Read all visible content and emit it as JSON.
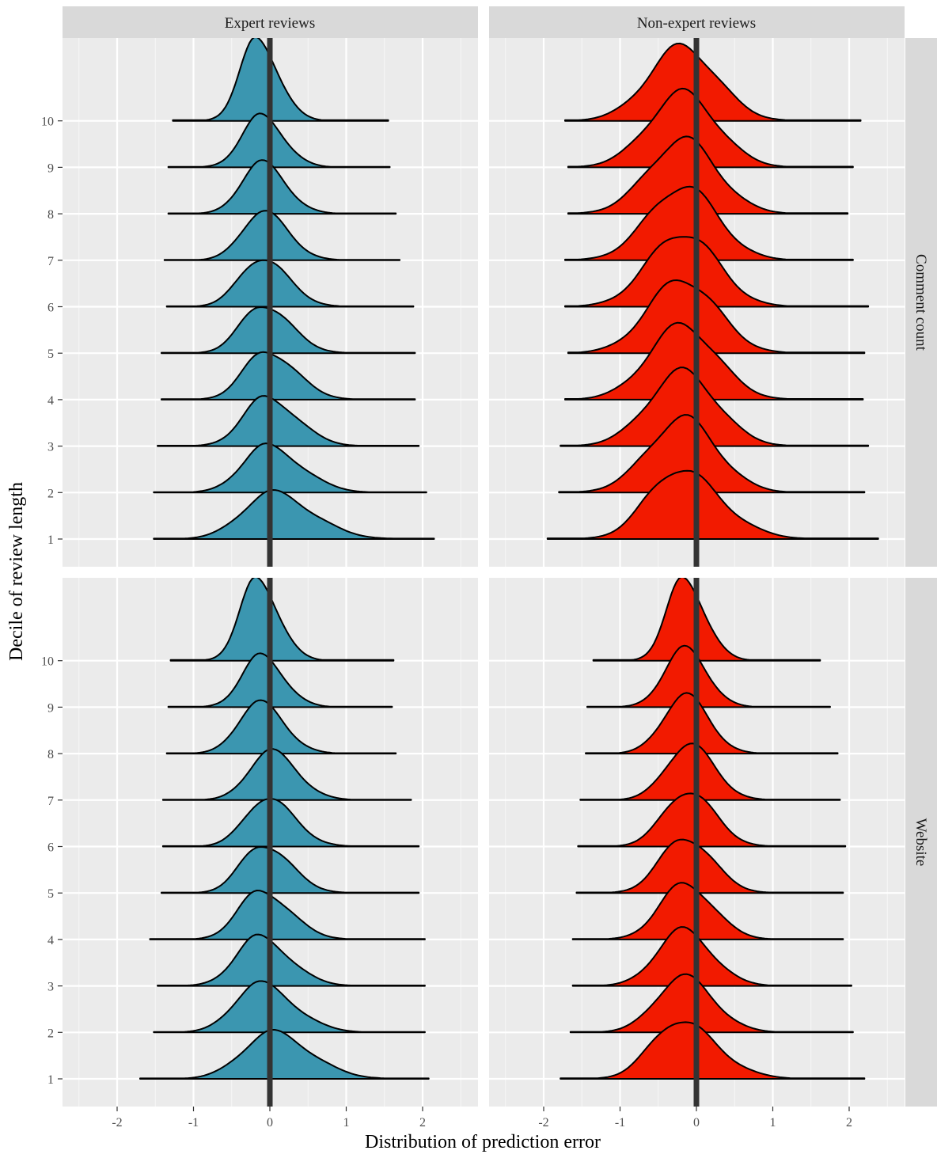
{
  "chart_data": {
    "type": "ridgeline",
    "xlabel": "Distribution of prediction error",
    "ylabel": "Decile of review length",
    "xlim": [
      -2.6,
      2.7
    ],
    "x_ticks": [
      "-2",
      "-1",
      "0",
      "1",
      "2"
    ],
    "x_tick_values": [
      -2,
      -1,
      0,
      1,
      2
    ],
    "y_ticks": [
      "1",
      "2",
      "3",
      "4",
      "5",
      "6",
      "7",
      "8",
      "9",
      "10"
    ],
    "reference_line_x": 0,
    "grid": true,
    "facet_columns": [
      {
        "label": "Expert reviews",
        "fill": "#3B96B0"
      },
      {
        "label": "Non-expert reviews",
        "fill": "#F21A00"
      }
    ],
    "facet_rows": [
      {
        "label": "Comment count"
      },
      {
        "label": "Website"
      }
    ],
    "panels": [
      {
        "column": "Expert reviews",
        "row": "Comment count",
        "ridges": [
          {
            "decile": 1,
            "x_min": -1.52,
            "x_max": 2.15,
            "peak": 0.02,
            "spread_left": 0.38,
            "spread_right": 0.52,
            "height": 1.0
          },
          {
            "decile": 2,
            "x_min": -1.52,
            "x_max": 2.05,
            "peak": -0.05,
            "spread_left": 0.32,
            "spread_right": 0.45,
            "height": 1.0
          },
          {
            "decile": 3,
            "x_min": -1.47,
            "x_max": 1.95,
            "peak": -0.05,
            "spread_left": 0.3,
            "spread_right": 0.4,
            "height": 1.05
          },
          {
            "decile": 4,
            "x_min": -1.42,
            "x_max": 1.9,
            "peak": -0.05,
            "spread_left": 0.29,
            "spread_right": 0.38,
            "height": 1.05
          },
          {
            "decile": 5,
            "x_min": -1.42,
            "x_max": 1.9,
            "peak": -0.1,
            "spread_left": 0.28,
            "spread_right": 0.36,
            "height": 1.05
          },
          {
            "decile": 6,
            "x_min": -1.35,
            "x_max": 1.88,
            "peak": -0.12,
            "spread_left": 0.28,
            "spread_right": 0.35,
            "height": 1.05
          },
          {
            "decile": 7,
            "x_min": -1.38,
            "x_max": 1.7,
            "peak": -0.1,
            "spread_left": 0.27,
            "spread_right": 0.33,
            "height": 1.05
          },
          {
            "decile": 8,
            "x_min": -1.33,
            "x_max": 1.65,
            "peak": -0.12,
            "spread_left": 0.26,
            "spread_right": 0.32,
            "height": 1.1
          },
          {
            "decile": 9,
            "x_min": -1.33,
            "x_max": 1.57,
            "peak": -0.12,
            "spread_left": 0.25,
            "spread_right": 0.3,
            "height": 1.1
          },
          {
            "decile": 10,
            "x_min": -1.27,
            "x_max": 1.55,
            "peak": -0.17,
            "spread_left": 0.22,
            "spread_right": 0.28,
            "height": 1.75
          }
        ]
      },
      {
        "column": "Non-expert reviews",
        "row": "Comment count",
        "ridges": [
          {
            "decile": 1,
            "x_min": -1.95,
            "x_max": 2.38,
            "peak": -0.25,
            "spread_left": 0.4,
            "spread_right": 0.55,
            "height": 1.5
          },
          {
            "decile": 2,
            "x_min": -1.8,
            "x_max": 2.2,
            "peak": -0.18,
            "spread_left": 0.45,
            "spread_right": 0.45,
            "height": 1.6
          },
          {
            "decile": 3,
            "x_min": -1.78,
            "x_max": 2.25,
            "peak": -0.18,
            "spread_left": 0.45,
            "spread_right": 0.45,
            "height": 1.6
          },
          {
            "decile": 4,
            "x_min": -1.72,
            "x_max": 2.18,
            "peak": -0.18,
            "spread_left": 0.45,
            "spread_right": 0.45,
            "height": 1.6
          },
          {
            "decile": 5,
            "x_min": -1.68,
            "x_max": 2.2,
            "peak": -0.18,
            "spread_left": 0.45,
            "spread_right": 0.45,
            "height": 1.6
          },
          {
            "decile": 6,
            "x_min": -1.72,
            "x_max": 2.25,
            "peak": -0.18,
            "spread_left": 0.45,
            "spread_right": 0.45,
            "height": 1.6
          },
          {
            "decile": 7,
            "x_min": -1.72,
            "x_max": 2.05,
            "peak": -0.18,
            "spread_left": 0.45,
            "spread_right": 0.45,
            "height": 1.6
          },
          {
            "decile": 8,
            "x_min": -1.68,
            "x_max": 1.98,
            "peak": -0.18,
            "spread_left": 0.45,
            "spread_right": 0.45,
            "height": 1.6
          },
          {
            "decile": 9,
            "x_min": -1.68,
            "x_max": 2.05,
            "peak": -0.18,
            "spread_left": 0.45,
            "spread_right": 0.45,
            "height": 1.6
          },
          {
            "decile": 10,
            "x_min": -1.72,
            "x_max": 2.15,
            "peak": -0.18,
            "spread_left": 0.45,
            "spread_right": 0.45,
            "height": 1.6
          }
        ]
      },
      {
        "column": "Expert reviews",
        "row": "Website",
        "ridges": [
          {
            "decile": 1,
            "x_min": -1.7,
            "x_max": 2.08,
            "peak": 0.02,
            "spread_left": 0.38,
            "spread_right": 0.5,
            "height": 1.0
          },
          {
            "decile": 2,
            "x_min": -1.52,
            "x_max": 2.03,
            "peak": -0.15,
            "spread_left": 0.32,
            "spread_right": 0.45,
            "height": 1.05
          },
          {
            "decile": 3,
            "x_min": -1.47,
            "x_max": 2.03,
            "peak": -0.15,
            "spread_left": 0.3,
            "spread_right": 0.4,
            "height": 1.05
          },
          {
            "decile": 4,
            "x_min": -1.57,
            "x_max": 2.03,
            "peak": -0.12,
            "spread_left": 0.29,
            "spread_right": 0.38,
            "height": 1.05
          },
          {
            "decile": 5,
            "x_min": -1.42,
            "x_max": 1.95,
            "peak": -0.1,
            "spread_left": 0.28,
            "spread_right": 0.36,
            "height": 1.05
          },
          {
            "decile": 6,
            "x_min": -1.4,
            "x_max": 1.95,
            "peak": -0.05,
            "spread_left": 0.28,
            "spread_right": 0.36,
            "height": 1.05
          },
          {
            "decile": 7,
            "x_min": -1.4,
            "x_max": 1.85,
            "peak": 0.0,
            "spread_left": 0.28,
            "spread_right": 0.35,
            "height": 1.05
          },
          {
            "decile": 8,
            "x_min": -1.35,
            "x_max": 1.65,
            "peak": -0.15,
            "spread_left": 0.27,
            "spread_right": 0.33,
            "height": 1.1
          },
          {
            "decile": 9,
            "x_min": -1.33,
            "x_max": 1.6,
            "peak": -0.12,
            "spread_left": 0.25,
            "spread_right": 0.3,
            "height": 1.1
          },
          {
            "decile": 10,
            "x_min": -1.3,
            "x_max": 1.62,
            "peak": -0.17,
            "spread_left": 0.22,
            "spread_right": 0.28,
            "height": 1.75
          }
        ]
      },
      {
        "column": "Non-expert reviews",
        "row": "Website",
        "ridges": [
          {
            "decile": 1,
            "x_min": -1.78,
            "x_max": 2.2,
            "peak": -0.25,
            "spread_left": 0.35,
            "spread_right": 0.5,
            "height": 1.25
          },
          {
            "decile": 2,
            "x_min": -1.65,
            "x_max": 2.05,
            "peak": -0.18,
            "spread_left": 0.35,
            "spread_right": 0.4,
            "height": 1.2
          },
          {
            "decile": 3,
            "x_min": -1.62,
            "x_max": 2.03,
            "peak": -0.18,
            "spread_left": 0.34,
            "spread_right": 0.38,
            "height": 1.2
          },
          {
            "decile": 4,
            "x_min": -1.62,
            "x_max": 1.92,
            "peak": -0.15,
            "spread_left": 0.33,
            "spread_right": 0.37,
            "height": 1.2
          },
          {
            "decile": 5,
            "x_min": -1.57,
            "x_max": 1.92,
            "peak": -0.15,
            "spread_left": 0.32,
            "spread_right": 0.36,
            "height": 1.2
          },
          {
            "decile": 6,
            "x_min": -1.55,
            "x_max": 1.95,
            "peak": -0.12,
            "spread_left": 0.31,
            "spread_right": 0.35,
            "height": 1.2
          },
          {
            "decile": 7,
            "x_min": -1.52,
            "x_max": 1.88,
            "peak": -0.1,
            "spread_left": 0.3,
            "spread_right": 0.33,
            "height": 1.2
          },
          {
            "decile": 8,
            "x_min": -1.45,
            "x_max": 1.85,
            "peak": -0.15,
            "spread_left": 0.29,
            "spread_right": 0.31,
            "height": 1.25
          },
          {
            "decile": 9,
            "x_min": -1.43,
            "x_max": 1.75,
            "peak": -0.15,
            "spread_left": 0.27,
            "spread_right": 0.29,
            "height": 1.25
          },
          {
            "decile": 10,
            "x_min": -1.35,
            "x_max": 1.62,
            "peak": -0.17,
            "spread_left": 0.22,
            "spread_right": 0.28,
            "height": 1.75
          }
        ]
      }
    ]
  }
}
